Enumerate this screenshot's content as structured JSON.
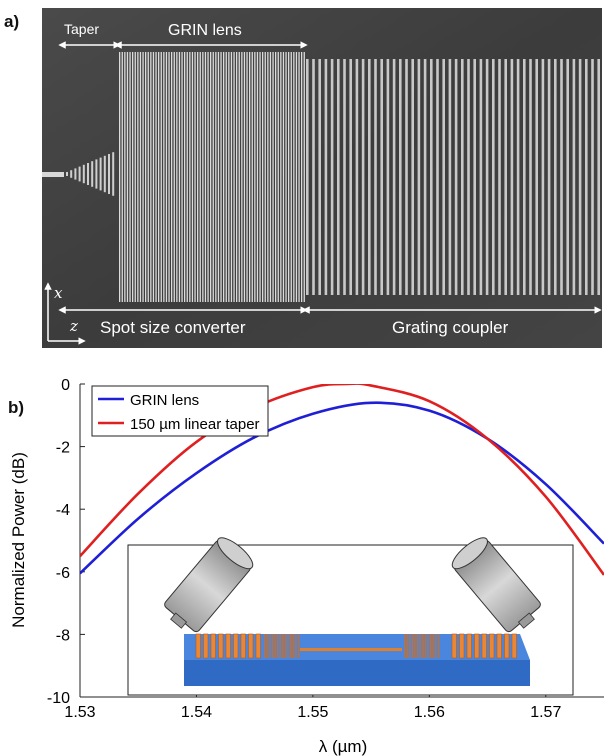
{
  "panel_a": {
    "label": "a)",
    "annotations": {
      "taper": "Taper",
      "grin_lens": "GRIN lens",
      "spot_size_converter": "Spot size converter",
      "grating_coupler": "Grating coupler",
      "axis_x": "x",
      "axis_z": "z"
    }
  },
  "panel_b": {
    "label": "b)"
  },
  "chart_data": {
    "type": "line",
    "xlabel": "λ (µm)",
    "ylabel": "Normalized Power (dB)",
    "xlim": [
      1.53,
      1.575
    ],
    "ylim": [
      -10,
      0
    ],
    "xticks": [
      "1.53",
      "1.54",
      "1.55",
      "1.56",
      "1.57"
    ],
    "yticks": [
      "0",
      "-2",
      "-4",
      "-6",
      "-8",
      "-10"
    ],
    "legend_position": "top-left",
    "series": [
      {
        "name": "GRIN lens",
        "color": "#1f1fd6",
        "x": [
          1.53,
          1.535,
          1.54,
          1.545,
          1.55,
          1.555,
          1.56,
          1.565,
          1.57,
          1.575
        ],
        "y": [
          -6.05,
          -4.3,
          -2.85,
          -1.7,
          -0.95,
          -0.6,
          -0.85,
          -1.75,
          -3.2,
          -5.1
        ]
      },
      {
        "name": "150 µm linear taper",
        "color": "#e02020",
        "x": [
          1.53,
          1.535,
          1.54,
          1.545,
          1.55,
          1.553,
          1.555,
          1.56,
          1.565,
          1.57,
          1.575
        ],
        "y": [
          -5.5,
          -3.5,
          -1.85,
          -0.75,
          -0.1,
          0.0,
          -0.05,
          -0.55,
          -1.75,
          -3.6,
          -6.1
        ]
      }
    ]
  }
}
